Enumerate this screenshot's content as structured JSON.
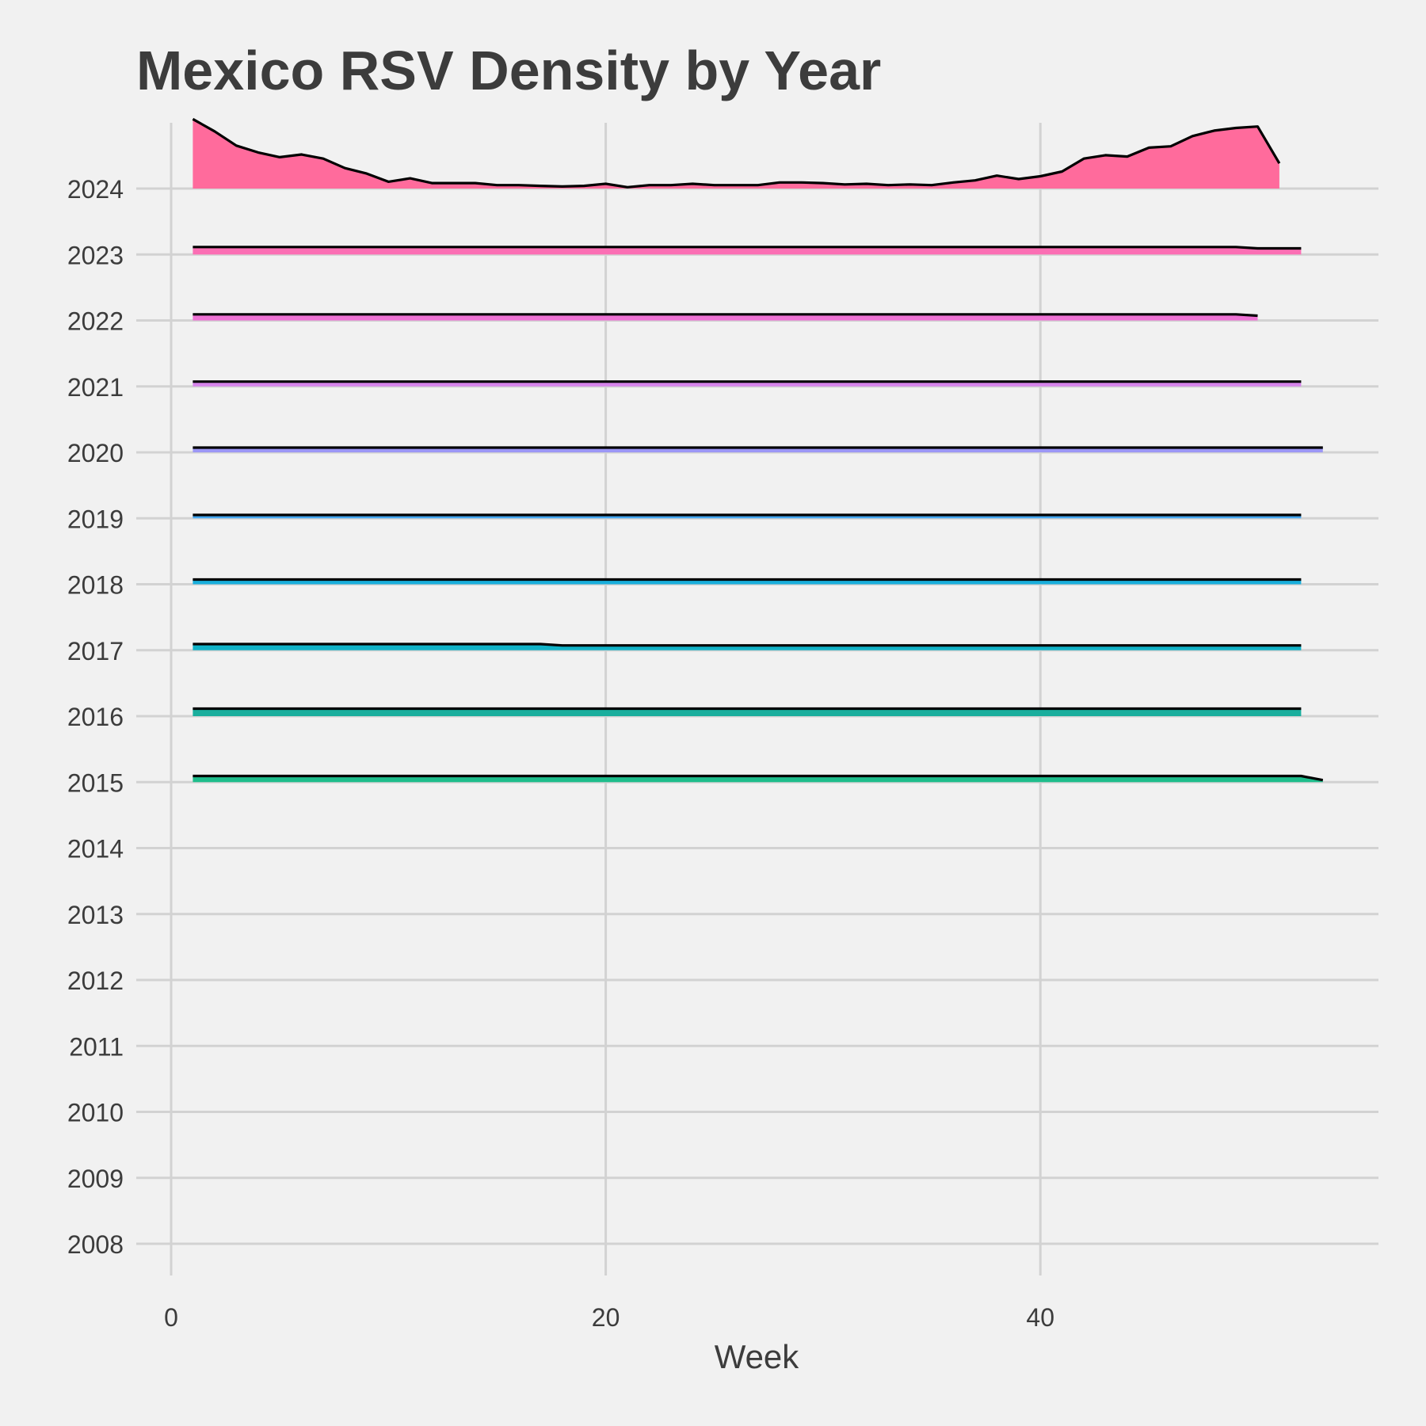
{
  "chart_data": {
    "type": "area",
    "title": "Mexico RSV Density by Year",
    "xlabel": "Week",
    "ylabel": "",
    "xlim": [
      0,
      56
    ],
    "x_ticks": [
      0,
      20,
      40
    ],
    "y_categories": [
      "2008",
      "2009",
      "2010",
      "2011",
      "2012",
      "2013",
      "2014",
      "2015",
      "2016",
      "2017",
      "2018",
      "2019",
      "2020",
      "2021",
      "2022",
      "2023",
      "2024"
    ],
    "grid": true,
    "legend": "none",
    "series": [
      {
        "year": "2015",
        "color": "#1ebd8c",
        "x": [
          1,
          52,
          53
        ],
        "y": [
          0.09,
          0.09,
          0.03
        ]
      },
      {
        "year": "2016",
        "color": "#1aae9d",
        "x": [
          1,
          52
        ],
        "y": [
          0.11,
          0.11
        ]
      },
      {
        "year": "2017",
        "color": "#11b2c7",
        "x": [
          1,
          17,
          18,
          52
        ],
        "y": [
          0.09,
          0.09,
          0.07,
          0.07
        ]
      },
      {
        "year": "2018",
        "color": "#18aedb",
        "x": [
          1,
          52
        ],
        "y": [
          0.07,
          0.07
        ]
      },
      {
        "year": "2019",
        "color": "#45a7f0",
        "x": [
          1,
          52
        ],
        "y": [
          0.05,
          0.05
        ]
      },
      {
        "year": "2020",
        "color": "#9c97f5",
        "x": [
          1,
          53
        ],
        "y": [
          0.07,
          0.07
        ]
      },
      {
        "year": "2021",
        "color": "#d684eb",
        "x": [
          1,
          52
        ],
        "y": [
          0.07,
          0.07
        ]
      },
      {
        "year": "2022",
        "color": "#ee72d4",
        "x": [
          1,
          49,
          50
        ],
        "y": [
          0.09,
          0.09,
          0.07
        ]
      },
      {
        "year": "2023",
        "color": "#fb6fb4",
        "x": [
          1,
          49,
          50,
          52
        ],
        "y": [
          0.11,
          0.11,
          0.09,
          0.09
        ]
      },
      {
        "year": "2024",
        "color": "#ff6b9c",
        "x": [
          1,
          2,
          3,
          4,
          5,
          6,
          7,
          8,
          9,
          10,
          11,
          12,
          13,
          14,
          15,
          16,
          17,
          18,
          19,
          20,
          21,
          22,
          23,
          24,
          25,
          26,
          27,
          28,
          29,
          30,
          31,
          32,
          33,
          34,
          35,
          36,
          37,
          38,
          39,
          40,
          41,
          42,
          43,
          44,
          45,
          46,
          47,
          48,
          49,
          50,
          51
        ],
        "y": [
          1.02,
          0.84,
          0.63,
          0.53,
          0.46,
          0.5,
          0.44,
          0.3,
          0.22,
          0.1,
          0.15,
          0.08,
          0.08,
          0.08,
          0.05,
          0.05,
          0.04,
          0.03,
          0.04,
          0.07,
          0.02,
          0.05,
          0.05,
          0.07,
          0.05,
          0.05,
          0.05,
          0.09,
          0.09,
          0.08,
          0.06,
          0.07,
          0.05,
          0.06,
          0.05,
          0.09,
          0.12,
          0.19,
          0.14,
          0.18,
          0.25,
          0.44,
          0.49,
          0.47,
          0.6,
          0.62,
          0.77,
          0.85,
          0.89,
          0.91,
          0.37
        ]
      }
    ]
  }
}
